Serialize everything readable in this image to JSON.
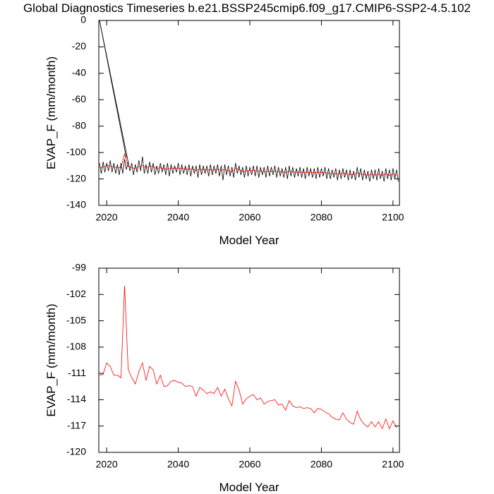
{
  "title": "Global Diagnostics Timeseries b.e21.BSSP245cmip6.f09_g17.CMIP6-SSP2-4.5.102",
  "chart_data": [
    {
      "type": "line",
      "ylabel": "EVAP_F (mm/month)",
      "xlabel": "Model Year",
      "xlim": [
        2017.8,
        2101.8
      ],
      "ylim": [
        -140,
        0
      ],
      "xticks": [
        2020,
        2040,
        2060,
        2080,
        2100
      ],
      "yticks": [
        0,
        -20,
        -40,
        -60,
        -80,
        -100,
        -120,
        -140
      ],
      "series": [
        {
          "color": "#000000",
          "x": [
            2018,
            2018.5,
            2019,
            2019.5,
            2020,
            2020.5,
            2021,
            2021.5,
            2022,
            2022.5,
            2023,
            2023.5,
            2024,
            2024.5,
            2025,
            2025.5,
            2026,
            2026.5,
            2027,
            2027.5,
            2028,
            2028.5,
            2029,
            2029.5,
            2030,
            2030.5,
            2031,
            2031.5,
            2032,
            2032.5,
            2033,
            2033.5,
            2034,
            2034.5,
            2035,
            2035.5,
            2036,
            2036.5,
            2037,
            2037.5,
            2038,
            2038.5,
            2039,
            2039.5,
            2040,
            2040.5,
            2041,
            2041.5,
            2042,
            2042.5,
            2043,
            2043.5,
            2044,
            2044.5,
            2045,
            2045.5,
            2046,
            2046.5,
            2047,
            2047.5,
            2048,
            2048.5,
            2049,
            2049.5,
            2050,
            2050.5,
            2051,
            2051.5,
            2052,
            2052.5,
            2053,
            2053.5,
            2054,
            2054.5,
            2055,
            2055.5,
            2056,
            2056.5,
            2057,
            2057.5,
            2058,
            2058.5,
            2059,
            2059.5,
            2060,
            2060.5,
            2061,
            2061.5,
            2062,
            2062.5,
            2063,
            2063.5,
            2064,
            2064.5,
            2065,
            2065.5,
            2066,
            2066.5,
            2067,
            2067.5,
            2068,
            2068.5,
            2069,
            2069.5,
            2070,
            2070.5,
            2071,
            2071.5,
            2072,
            2072.5,
            2073,
            2073.5,
            2074,
            2074.5,
            2075,
            2075.5,
            2076,
            2076.5,
            2077,
            2077.5,
            2078,
            2078.5,
            2079,
            2079.5,
            2080,
            2080.5,
            2081,
            2081.5,
            2082,
            2082.5,
            2083,
            2083.5,
            2084,
            2084.5,
            2085,
            2085.5,
            2086,
            2086.5,
            2087,
            2087.5,
            2088,
            2088.5,
            2089,
            2089.5,
            2090,
            2090.5,
            2091,
            2091.5,
            2092,
            2092.5,
            2093,
            2093.5,
            2094,
            2094.5,
            2095,
            2095.5,
            2096,
            2096.5,
            2097,
            2097.5,
            2098,
            2098.5,
            2099,
            2099.5,
            2100,
            2100.5,
            2101,
            2101.5
          ],
          "values": [
            -108,
            -116,
            -107,
            -115,
            -108,
            -114,
            -106,
            -115,
            -108,
            -116,
            -109,
            -117,
            -108,
            -116,
            -105,
            -113,
            -107,
            -114,
            -108,
            -117,
            -109,
            -115,
            -106,
            -114,
            -103,
            -116,
            -109,
            -116,
            -107,
            -115,
            -108,
            -117,
            -110,
            -116,
            -108,
            -115,
            -109,
            -117,
            -108,
            -118,
            -109,
            -116,
            -110,
            -115,
            -108,
            -117,
            -109,
            -116,
            -110,
            -117,
            -109,
            -118,
            -110,
            -116,
            -110,
            -119,
            -109,
            -117,
            -110,
            -116,
            -110,
            -118,
            -109,
            -117,
            -110,
            -116,
            -109,
            -118,
            -110,
            -121,
            -109,
            -117,
            -110,
            -118,
            -111,
            -119,
            -108,
            -116,
            -110,
            -117,
            -111,
            -119,
            -110,
            -118,
            -111,
            -117,
            -110,
            -118,
            -110,
            -119,
            -111,
            -117,
            -111,
            -119,
            -110,
            -118,
            -111,
            -117,
            -110,
            -119,
            -111,
            -118,
            -112,
            -119,
            -111,
            -120,
            -110,
            -118,
            -111,
            -119,
            -112,
            -118,
            -111,
            -119,
            -112,
            -120,
            -111,
            -118,
            -112,
            -119,
            -112,
            -120,
            -111,
            -119,
            -112,
            -118,
            -111,
            -120,
            -112,
            -120,
            -113,
            -119,
            -112,
            -121,
            -113,
            -120,
            -112,
            -119,
            -113,
            -121,
            -113,
            -120,
            -114,
            -121,
            -111,
            -119,
            -112,
            -121,
            -113,
            -120,
            -114,
            -122,
            -113,
            -120,
            -113,
            -121,
            -112,
            -120,
            -114,
            -122,
            -112,
            -120,
            -113,
            -121,
            -112,
            -120,
            -113,
            -122
          ]
        },
        {
          "color": "#000000",
          "x": [
            2018,
            2025.5
          ],
          "values": [
            0,
            -104
          ]
        },
        {
          "color": "#000000",
          "x": [
            2018,
            2026
          ],
          "values": [
            0,
            -107
          ]
        },
        {
          "color": "#ff0000",
          "x": [
            2018,
            2019,
            2020,
            2021,
            2022,
            2023,
            2024,
            2025,
            2026,
            2027,
            2028,
            2029,
            2030,
            2031,
            2032,
            2033,
            2034,
            2035,
            2036,
            2037,
            2038,
            2039,
            2040,
            2041,
            2042,
            2043,
            2044,
            2045,
            2046,
            2047,
            2048,
            2049,
            2050,
            2051,
            2052,
            2053,
            2054,
            2055,
            2056,
            2057,
            2058,
            2059,
            2060,
            2061,
            2062,
            2063,
            2064,
            2065,
            2066,
            2067,
            2068,
            2069,
            2070,
            2071,
            2072,
            2073,
            2074,
            2075,
            2076,
            2077,
            2078,
            2079,
            2080,
            2081,
            2082,
            2083,
            2084,
            2085,
            2086,
            2087,
            2088,
            2089,
            2090,
            2091,
            2092,
            2093,
            2094,
            2095,
            2096,
            2097,
            2098,
            2099,
            2100,
            2101
          ],
          "values": [
            -111.2,
            -111.1,
            -109.8,
            -110.2,
            -111.2,
            -111.2,
            -111.5,
            -101.0,
            -110.5,
            -111.5,
            -112.2,
            -110.8,
            -109.8,
            -111.8,
            -110.2,
            -110.6,
            -112.2,
            -111.2,
            -112.5,
            -112.4,
            -111.9,
            -111.8,
            -112.0,
            -112.1,
            -112.5,
            -112.4,
            -112.5,
            -113.6,
            -112.6,
            -112.9,
            -113.3,
            -113.1,
            -113.3,
            -112.6,
            -113.6,
            -112.8,
            -113.9,
            -114.7,
            -111.9,
            -112.9,
            -114.5,
            -113.9,
            -113.6,
            -113.4,
            -114.0,
            -113.8,
            -114.5,
            -114.2,
            -114.1,
            -114.0,
            -114.6,
            -114.5,
            -115.2,
            -114.1,
            -114.7,
            -114.9,
            -114.8,
            -115.0,
            -114.9,
            -115.0,
            -115.5,
            -115.0,
            -115.1,
            -115.4,
            -115.6,
            -116.0,
            -116.2,
            -116.3,
            -115.5,
            -116.2,
            -116.6,
            -116.8,
            -115.3,
            -116.3,
            -116.8,
            -117.1,
            -116.5,
            -117.1,
            -116.5,
            -117.3,
            -116.2,
            -117.3,
            -116.4,
            -117.2
          ]
        }
      ]
    },
    {
      "type": "line",
      "ylabel": "EVAP_F (mm/month)",
      "xlabel": "Model Year",
      "xlim": [
        2017.8,
        2101.8
      ],
      "ylim": [
        -120,
        -99
      ],
      "xticks": [
        2020,
        2040,
        2060,
        2080,
        2100
      ],
      "yticks": [
        -99,
        -102,
        -105,
        -108,
        -111,
        -114,
        -117,
        -120
      ],
      "series": [
        {
          "color": "#ff0000",
          "x": [
            2018,
            2019,
            2020,
            2021,
            2022,
            2023,
            2024,
            2025,
            2026,
            2027,
            2028,
            2029,
            2030,
            2031,
            2032,
            2033,
            2034,
            2035,
            2036,
            2037,
            2038,
            2039,
            2040,
            2041,
            2042,
            2043,
            2044,
            2045,
            2046,
            2047,
            2048,
            2049,
            2050,
            2051,
            2052,
            2053,
            2054,
            2055,
            2056,
            2057,
            2058,
            2059,
            2060,
            2061,
            2062,
            2063,
            2064,
            2065,
            2066,
            2067,
            2068,
            2069,
            2070,
            2071,
            2072,
            2073,
            2074,
            2075,
            2076,
            2077,
            2078,
            2079,
            2080,
            2081,
            2082,
            2083,
            2084,
            2085,
            2086,
            2087,
            2088,
            2089,
            2090,
            2091,
            2092,
            2093,
            2094,
            2095,
            2096,
            2097,
            2098,
            2099,
            2100,
            2101
          ],
          "values": [
            -111.2,
            -111.1,
            -109.8,
            -110.2,
            -111.2,
            -111.2,
            -111.5,
            -101.0,
            -110.5,
            -111.5,
            -112.2,
            -110.8,
            -109.8,
            -111.8,
            -110.2,
            -110.6,
            -112.2,
            -111.2,
            -112.5,
            -112.4,
            -111.9,
            -111.8,
            -112.0,
            -112.1,
            -112.5,
            -112.4,
            -112.5,
            -113.6,
            -112.6,
            -112.9,
            -113.3,
            -113.1,
            -113.3,
            -112.6,
            -113.6,
            -112.8,
            -113.9,
            -114.7,
            -111.9,
            -112.9,
            -114.5,
            -113.9,
            -113.6,
            -113.4,
            -114.0,
            -113.8,
            -114.5,
            -114.2,
            -114.1,
            -114.0,
            -114.6,
            -114.5,
            -115.2,
            -114.1,
            -114.7,
            -114.9,
            -114.8,
            -115.0,
            -114.9,
            -115.0,
            -115.5,
            -115.0,
            -115.1,
            -115.4,
            -115.6,
            -116.0,
            -116.2,
            -116.3,
            -115.5,
            -116.2,
            -116.6,
            -116.8,
            -115.3,
            -116.3,
            -116.8,
            -117.1,
            -116.5,
            -117.1,
            -116.5,
            -117.3,
            -116.2,
            -117.3,
            -116.4,
            -117.2
          ]
        }
      ]
    }
  ]
}
